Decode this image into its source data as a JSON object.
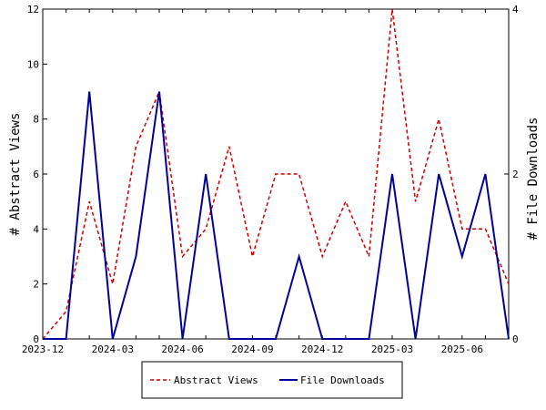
{
  "chart_data": {
    "type": "line",
    "x": [
      "2023-12",
      "2024-01",
      "2024-02",
      "2024-03",
      "2024-04",
      "2024-05",
      "2024-06",
      "2024-07",
      "2024-08",
      "2024-09",
      "2024-10",
      "2024-11",
      "2024-12",
      "2025-01",
      "2025-02",
      "2025-03",
      "2025-04",
      "2025-05",
      "2025-06",
      "2025-07",
      "2025-08"
    ],
    "x_tick_labels": [
      "2023-12",
      "2024-03",
      "2024-06",
      "2024-09",
      "2024-12",
      "2025-03",
      "2025-06"
    ],
    "series": [
      {
        "name": "Abstract Views",
        "axis": "left",
        "color": "#cc0000",
        "style": "dashed",
        "values": [
          0,
          1,
          5,
          2,
          7,
          9,
          3,
          4,
          7,
          3,
          6,
          6,
          3,
          5,
          3,
          12,
          5,
          8,
          4,
          4,
          2
        ]
      },
      {
        "name": "File Downloads",
        "axis": "right",
        "color": "#000099",
        "style": "solid",
        "values": [
          0,
          0,
          3,
          0,
          1,
          3,
          0,
          2,
          0,
          0,
          0,
          1,
          0,
          0,
          0,
          2,
          0,
          2,
          1,
          2,
          0
        ]
      }
    ],
    "ylabel_left": "# Abstract Views",
    "ylabel_right": "# File Downloads",
    "ylim_left": [
      0,
      12
    ],
    "ylim_right": [
      0,
      4
    ],
    "y_ticks_left": [
      0,
      2,
      4,
      6,
      8,
      10,
      12
    ],
    "y_ticks_right": [
      0,
      2,
      4
    ],
    "grid": false,
    "legend_position": "bottom-center"
  }
}
